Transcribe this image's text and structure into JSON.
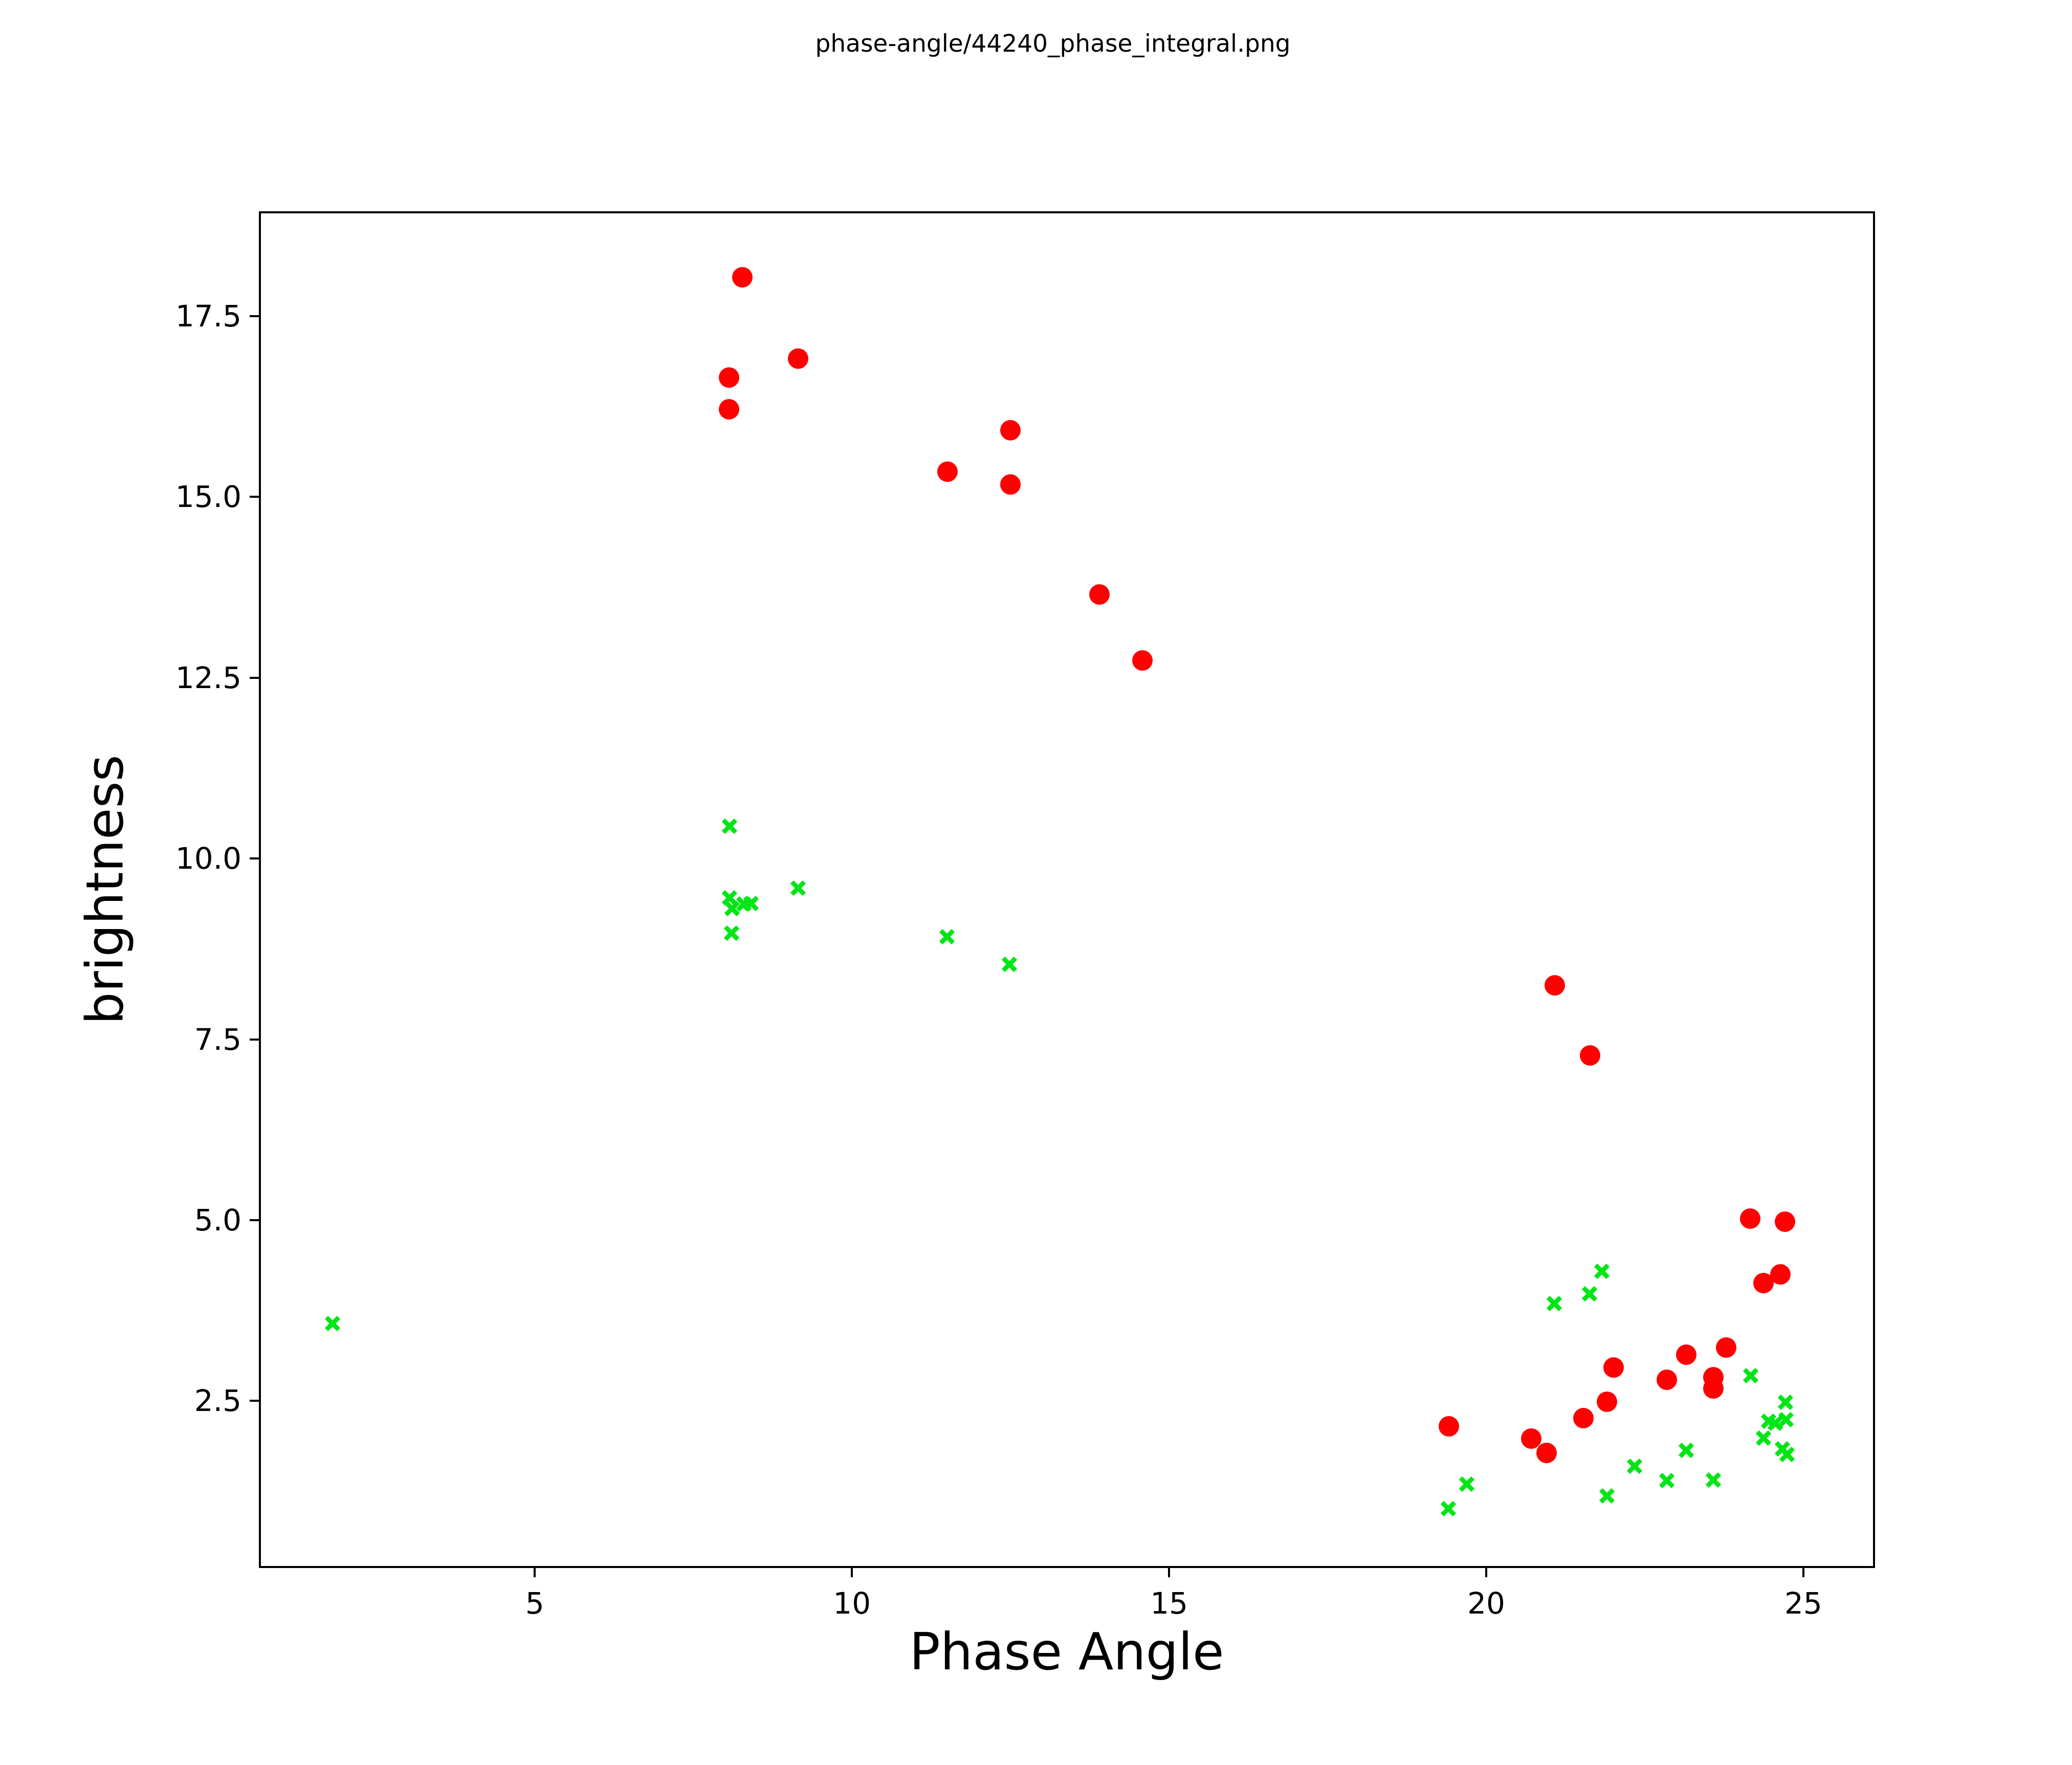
{
  "figure": {
    "title": "phase-angle/44240_phase_integral.png"
  },
  "chart_data": {
    "type": "scatter",
    "title": "phase-angle/44240_phase_integral.png",
    "xlabel": "Phase Angle",
    "ylabel": "brightness",
    "xlim": [
      0.65,
      26.13
    ],
    "ylim": [
      0.19,
      18.95
    ],
    "grid": false,
    "legend_position": "none",
    "x_ticks": [
      5,
      10,
      15,
      20,
      25
    ],
    "x_tick_labels": [
      "5",
      "10",
      "15",
      "20",
      "25"
    ],
    "y_ticks": [
      2.5,
      5.0,
      7.5,
      10.0,
      12.5,
      15.0,
      17.5
    ],
    "y_tick_labels": [
      "2.5",
      "5.0",
      "7.5",
      "10.0",
      "12.5",
      "15.0",
      "17.5"
    ],
    "series": [
      {
        "name": "red-circles",
        "marker": "circle",
        "color": "#ff0000",
        "marker_size_px": 40,
        "points": [
          [
            8.27,
            18.04
          ],
          [
            8.06,
            16.65
          ],
          [
            8.06,
            16.21
          ],
          [
            9.15,
            16.91
          ],
          [
            11.51,
            15.35
          ],
          [
            12.5,
            15.92
          ],
          [
            12.5,
            15.17
          ],
          [
            13.9,
            13.65
          ],
          [
            14.58,
            12.74
          ],
          [
            21.08,
            8.25
          ],
          [
            21.64,
            7.28
          ],
          [
            19.41,
            2.15
          ],
          [
            20.71,
            1.98
          ],
          [
            20.95,
            1.78
          ],
          [
            21.53,
            2.26
          ],
          [
            21.9,
            2.49
          ],
          [
            22.01,
            2.96
          ],
          [
            22.85,
            2.79
          ],
          [
            23.15,
            3.14
          ],
          [
            23.58,
            2.83
          ],
          [
            23.58,
            2.67
          ],
          [
            23.78,
            3.24
          ],
          [
            24.37,
            4.13
          ],
          [
            24.64,
            4.25
          ],
          [
            24.16,
            5.02
          ],
          [
            24.71,
            4.98
          ]
        ]
      },
      {
        "name": "green-crosses",
        "marker": "x",
        "color": "#00e515",
        "marker_size_px": 32,
        "points": [
          [
            1.81,
            3.57
          ],
          [
            8.07,
            10.45
          ],
          [
            9.15,
            9.59
          ],
          [
            8.07,
            9.46
          ],
          [
            8.11,
            9.31
          ],
          [
            8.3,
            9.37
          ],
          [
            8.41,
            9.38
          ],
          [
            8.1,
            8.97
          ],
          [
            11.5,
            8.92
          ],
          [
            12.48,
            8.54
          ],
          [
            21.07,
            3.85
          ],
          [
            21.63,
            3.98
          ],
          [
            21.82,
            4.29
          ],
          [
            24.17,
            2.85
          ],
          [
            24.72,
            2.48
          ],
          [
            24.45,
            2.22
          ],
          [
            24.56,
            2.19
          ],
          [
            24.73,
            2.24
          ],
          [
            24.37,
            1.99
          ],
          [
            24.67,
            1.84
          ],
          [
            24.74,
            1.76
          ],
          [
            19.4,
            1.01
          ],
          [
            19.69,
            1.35
          ],
          [
            21.9,
            1.19
          ],
          [
            22.34,
            1.6
          ],
          [
            22.85,
            1.4
          ],
          [
            23.15,
            1.82
          ],
          [
            23.58,
            1.41
          ]
        ]
      }
    ]
  }
}
